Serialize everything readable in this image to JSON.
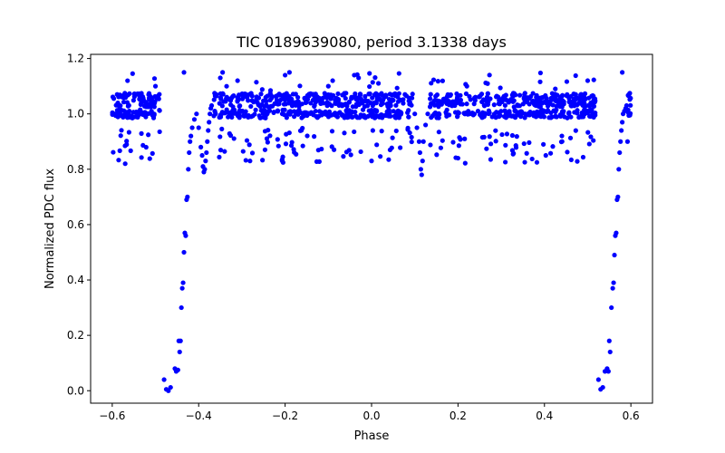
{
  "chart_data": {
    "type": "scatter",
    "title": "TIC 0189639080, period 3.1338 days",
    "xlabel": "Phase",
    "ylabel": "Normalized PDC flux",
    "xlim": [
      -0.65,
      0.65
    ],
    "ylim": [
      -0.045,
      1.215
    ],
    "xticks": [
      -0.6,
      -0.4,
      -0.2,
      0.0,
      0.2,
      0.4,
      0.6
    ],
    "xtick_labels": [
      "−0.6",
      "−0.4",
      "−0.2",
      "0.0",
      "0.2",
      "0.4",
      "0.6"
    ],
    "yticks": [
      0.0,
      0.2,
      0.4,
      0.6,
      0.8,
      1.0,
      1.2
    ],
    "ytick_labels": [
      "0.0",
      "0.2",
      "0.4",
      "0.6",
      "0.8",
      "1.0",
      "1.2"
    ],
    "grid": false,
    "series": [
      {
        "name": "Normalized PDC flux",
        "color": "#0000ff",
        "marker": "circle",
        "x": [
          -0.48,
          -0.475,
          -0.47,
          -0.465,
          -0.455,
          -0.452,
          -0.448,
          -0.446,
          -0.444,
          -0.442,
          -0.44,
          -0.438,
          -0.436,
          -0.434,
          -0.432,
          -0.43,
          -0.428,
          -0.426,
          -0.424,
          -0.422,
          -0.42,
          -0.418,
          -0.415,
          -0.41,
          -0.405,
          -0.4,
          -0.395,
          -0.392,
          -0.39,
          -0.388,
          -0.386,
          -0.384,
          -0.382,
          -0.38,
          -0.378,
          -0.376,
          -0.374,
          -0.372,
          -0.37,
          0.1,
          0.105,
          0.11,
          0.112,
          0.114,
          0.116,
          0.118,
          0.12,
          0.125,
          0.13,
          0.525,
          0.53,
          0.535,
          0.54,
          0.545,
          0.548,
          0.55,
          0.552,
          0.555,
          0.558,
          0.56,
          0.562,
          0.564,
          0.566,
          0.568,
          0.57,
          0.572,
          0.574,
          0.576,
          0.578,
          0.58,
          0.582,
          0.585,
          0.588,
          0.59,
          -0.57,
          -0.5,
          -0.434,
          -0.35,
          -0.31,
          -0.2,
          -0.19,
          -0.1,
          -0.09,
          -0.04,
          -0.03,
          0.0,
          0.2,
          0.5,
          0.58
        ],
        "y": [
          0.04,
          0.005,
          0.0,
          0.012,
          0.08,
          0.07,
          0.075,
          0.18,
          0.14,
          0.18,
          0.3,
          0.37,
          0.39,
          0.5,
          0.57,
          0.56,
          0.69,
          0.7,
          0.8,
          0.86,
          0.9,
          0.92,
          0.95,
          0.98,
          1.0,
          0.95,
          0.88,
          0.85,
          0.81,
          0.79,
          0.8,
          0.83,
          0.86,
          0.9,
          0.94,
          0.97,
          1.0,
          1.02,
          1.03,
          1.0,
          0.95,
          0.9,
          0.86,
          0.8,
          0.78,
          0.83,
          0.9,
          0.96,
          1.0,
          0.04,
          0.005,
          0.012,
          0.07,
          0.08,
          0.07,
          0.18,
          0.14,
          0.3,
          0.37,
          0.39,
          0.49,
          0.56,
          0.57,
          0.69,
          0.7,
          0.8,
          0.86,
          0.9,
          0.94,
          0.97,
          1.0,
          1.01,
          1.02,
          1.03,
          0.82,
          1.1,
          1.15,
          1.13,
          1.12,
          1.14,
          1.15,
          1.1,
          1.12,
          1.14,
          1.13,
          0.83,
          0.84,
          1.12,
          1.15
        ]
      }
    ],
    "band_model": {
      "x_range": [
        -0.6,
        0.6
      ],
      "upper_flux": 1.05,
      "lower_flux": 1.0,
      "upper_spread": 0.025,
      "lower_spread": 0.015,
      "outlier_low": [
        0.82,
        0.95
      ],
      "outlier_high": [
        1.08,
        1.15
      ],
      "low_band_x": [
        0.16,
        0.4
      ],
      "low_band_flux": [
        0.88,
        0.93
      ]
    }
  }
}
